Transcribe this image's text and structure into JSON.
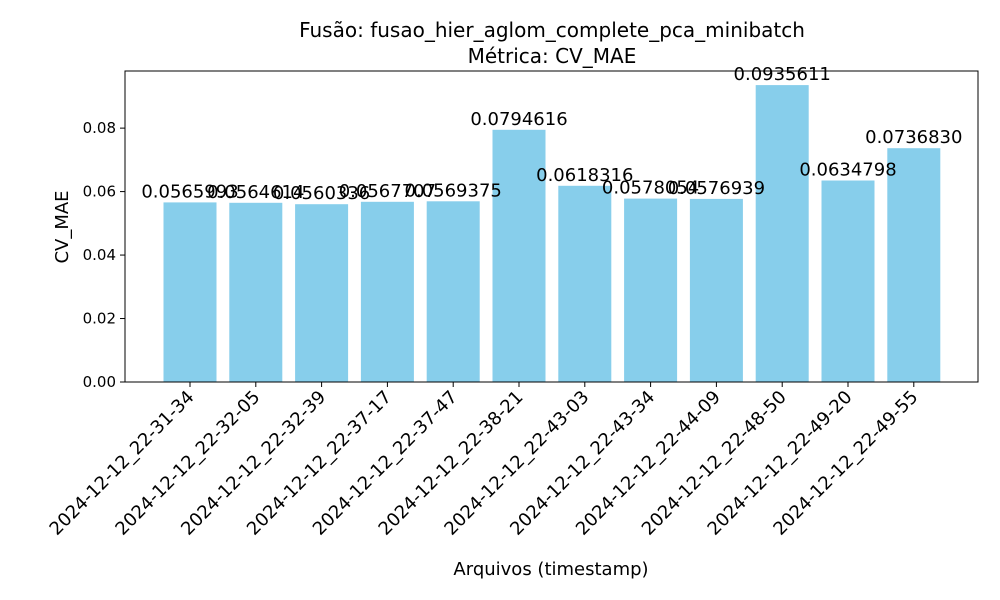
{
  "chart_data": {
    "type": "bar",
    "title": "Fusão: fusao_hier_aglom_complete_pca_minibatch",
    "subtitle": "Métrica: CV_MAE",
    "xlabel": "Arquivos (timestamp)",
    "ylabel": "CV_MAE",
    "ylim": [
      0,
      0.098
    ],
    "yticks": [
      "0.00",
      "0.02",
      "0.04",
      "0.06",
      "0.08"
    ],
    "grid": false,
    "bar_color": "#87ceeb",
    "categories": [
      "2024-12-12_22-31-34",
      "2024-12-12_22-32-05",
      "2024-12-12_22-32-39",
      "2024-12-12_22-37-17",
      "2024-12-12_22-37-47",
      "2024-12-12_22-38-21",
      "2024-12-12_22-43-03",
      "2024-12-12_22-43-34",
      "2024-12-12_22-44-09",
      "2024-12-12_22-48-50",
      "2024-12-12_22-49-20",
      "2024-12-12_22-49-55"
    ],
    "values": [
      0.0565993,
      0.0564614,
      0.0560336,
      0.0567707,
      0.0569375,
      0.0794616,
      0.0618316,
      0.0578054,
      0.0576939,
      0.0935611,
      0.0634798,
      0.073683
    ],
    "value_labels": [
      "0.0565993",
      "0.0564614",
      "0.0560336",
      "0.0567707",
      "0.0569375",
      "0.0794616",
      "0.0618316",
      "0.0578054",
      "0.0576939",
      "0.0935611",
      "0.0634798",
      "0.0736830"
    ]
  }
}
